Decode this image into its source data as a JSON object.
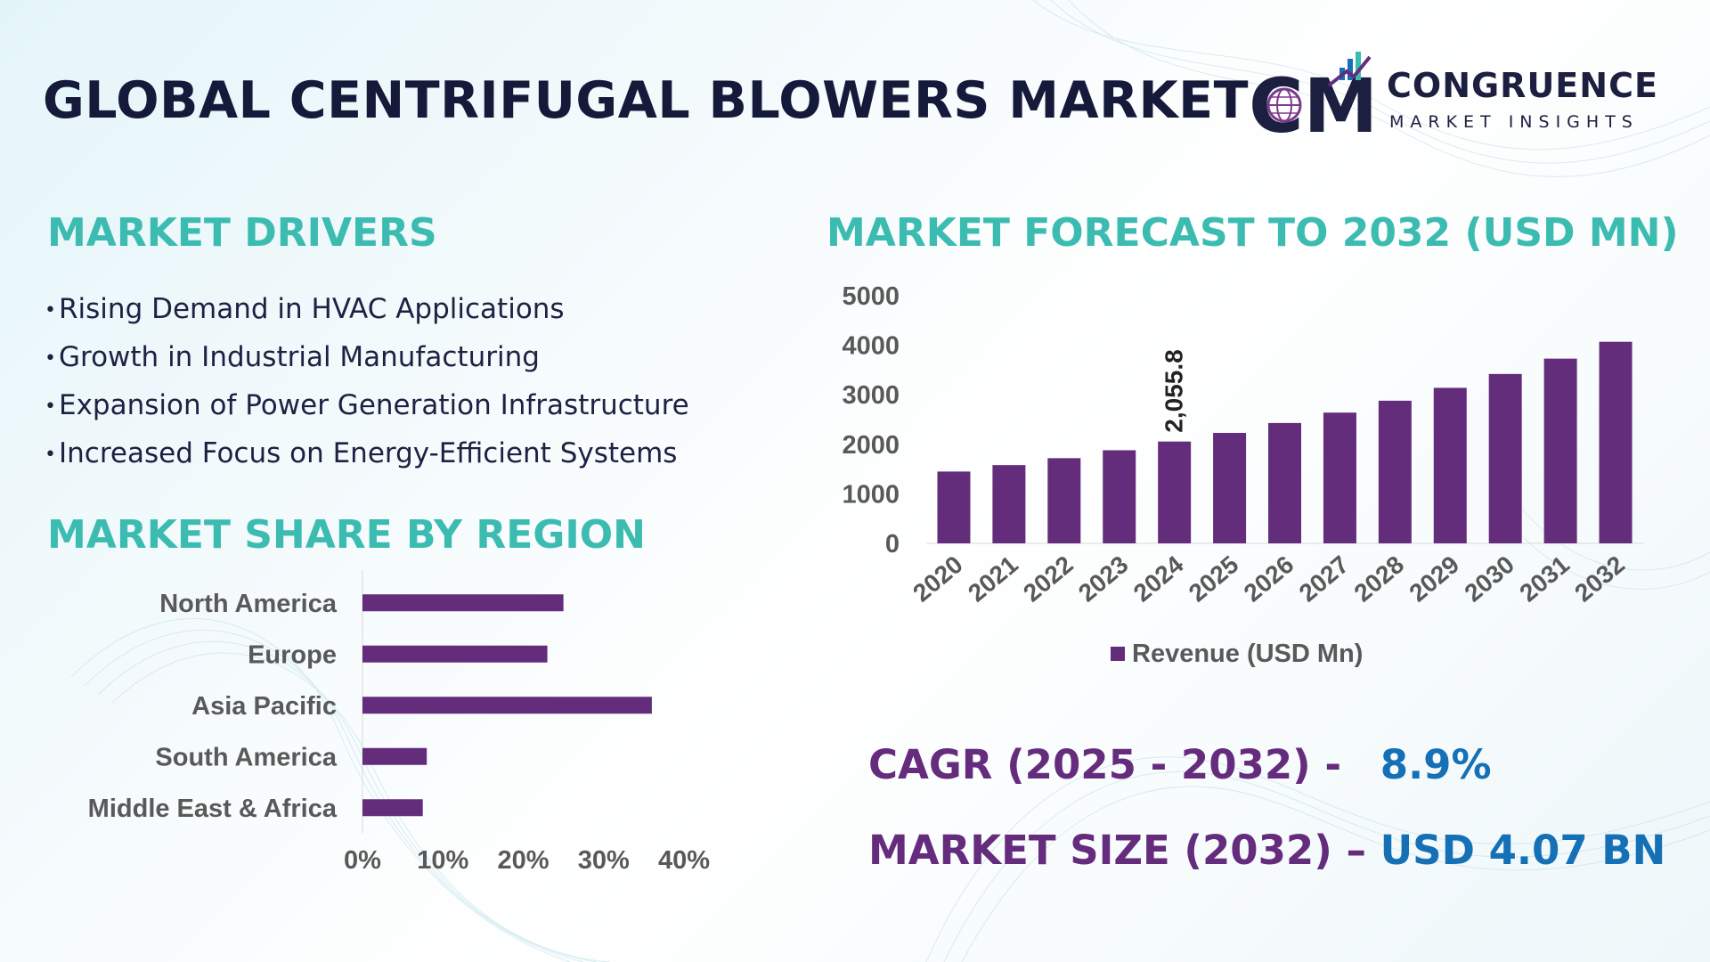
{
  "title": "GLOBAL CENTRIFUGAL BLOWERS MARKET",
  "logo": {
    "name": "CONGRUENCE",
    "tagline": "MARKET INSIGHTS",
    "letters": "CM",
    "icon": "globe-icon"
  },
  "drivers": {
    "heading": "MARKET DRIVERS",
    "bullet": "•",
    "items": [
      "Rising Demand in HVAC Applications",
      "Growth in Industrial Manufacturing",
      "Expansion of Power Generation Infrastructure",
      "Increased Focus on Energy-Efficient Systems"
    ]
  },
  "region": {
    "heading": "MARKET SHARE BY REGION"
  },
  "forecast": {
    "heading": "MARKET FORECAST TO 2032 (USD MN)"
  },
  "kpis": {
    "cagr_label": "CAGR (2025 - 2032) -",
    "cagr_value": "8.9%",
    "size_label": "MARKET SIZE (2032) –",
    "size_value": "USD 4.07 BN"
  },
  "colors": {
    "bar": "#642d7c",
    "heading": "#3cbcb1",
    "title": "#151a3b",
    "kpi_label": "#652c7e",
    "kpi_value": "#1670b5",
    "axis_text": "#595959"
  },
  "chart_data": [
    {
      "type": "bar",
      "orientation": "horizontal",
      "categories": [
        "North America",
        "Europe",
        "Asia Pacific",
        "South America",
        "Middle East & Africa"
      ],
      "values": [
        25,
        23,
        36,
        8,
        7.5
      ],
      "xlim": [
        0,
        40
      ],
      "xticks": [
        "0%",
        "10%",
        "20%",
        "30%",
        "40%"
      ],
      "grid": false,
      "legend": null
    },
    {
      "type": "bar",
      "categories": [
        "2020",
        "2021",
        "2022",
        "2023",
        "2024",
        "2025",
        "2026",
        "2027",
        "2028",
        "2029",
        "2030",
        "2031",
        "2032"
      ],
      "series": [
        {
          "name": "Revenue (USD Mn)",
          "values": [
            1450,
            1580,
            1720,
            1880,
            2055.8,
            2230,
            2430,
            2640,
            2880,
            3140,
            3420,
            3730,
            4070
          ]
        }
      ],
      "data_labels": {
        "2024": "2,055.8"
      },
      "ylim": [
        0,
        5000
      ],
      "yticks": [
        "0",
        "1000",
        "2000",
        "3000",
        "4000",
        "5000"
      ],
      "grid": false,
      "legend": "bottom"
    }
  ]
}
